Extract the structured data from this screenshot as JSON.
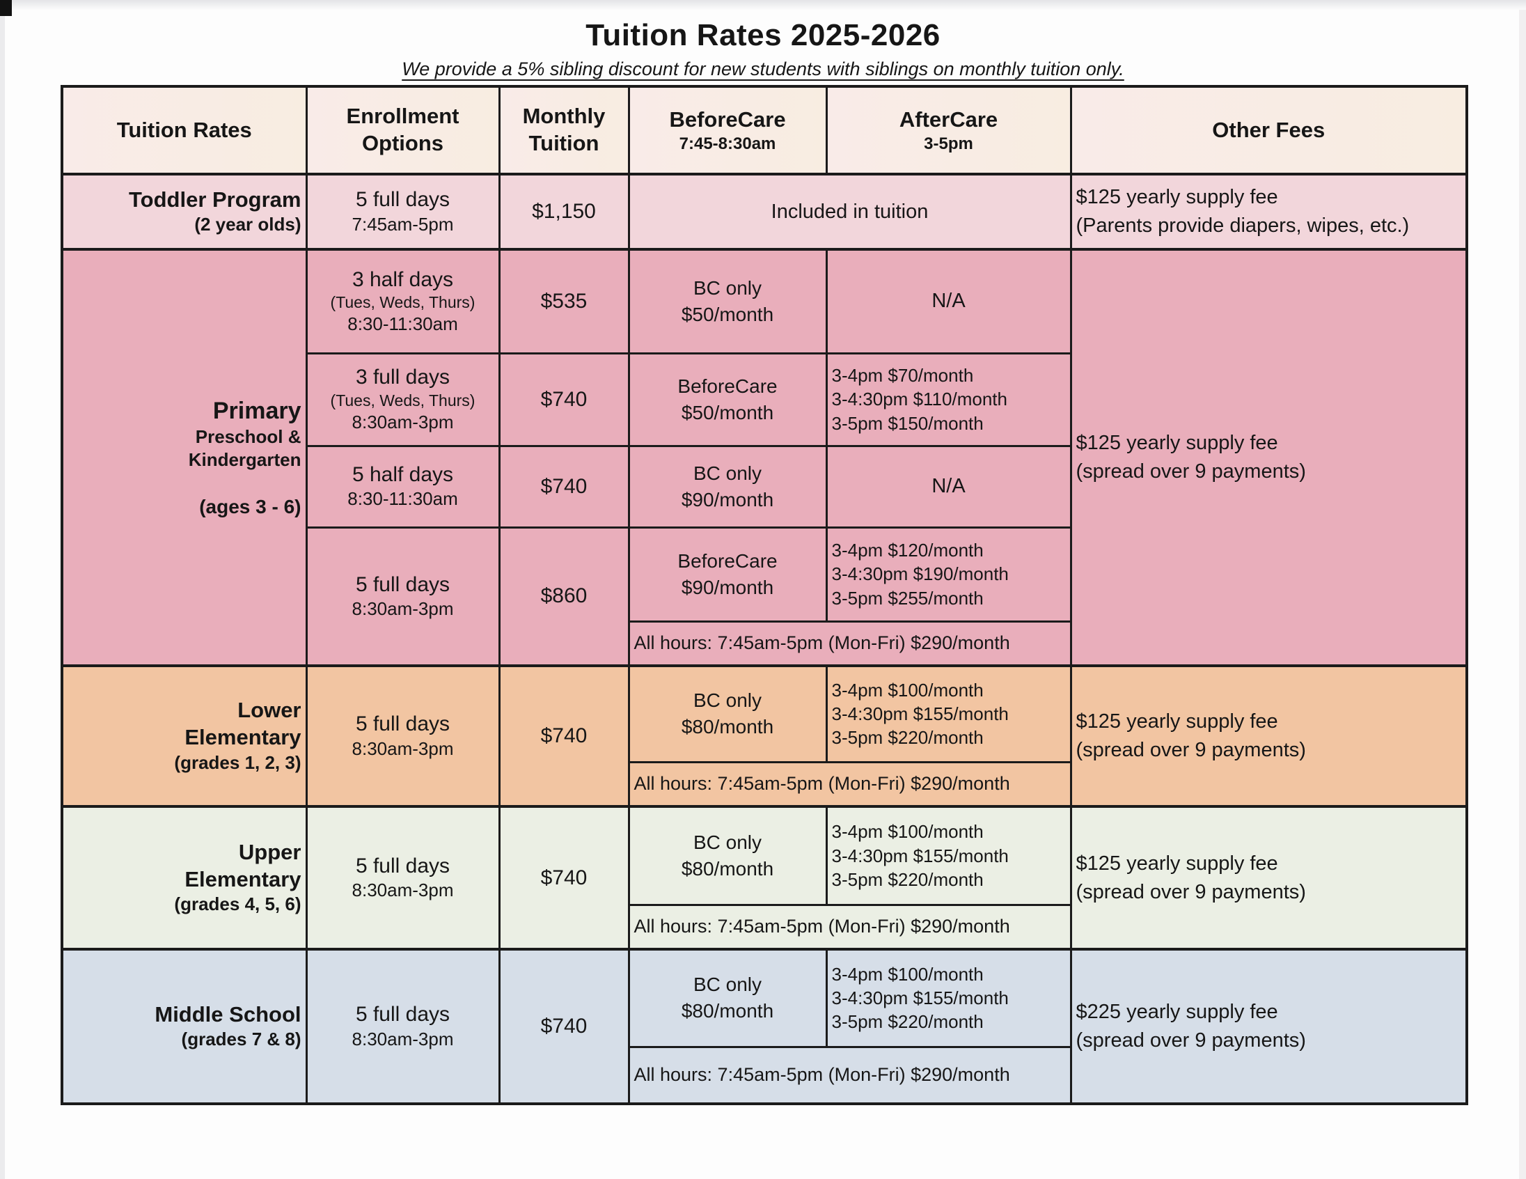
{
  "page": {
    "title": "Tuition Rates 2025-2026",
    "subtitle": "We provide a 5% sibling discount for new students with siblings on monthly tuition only."
  },
  "headers": {
    "tuition_rates": "Tuition Rates",
    "enrollment_options": "Enrollment\nOptions",
    "monthly_tuition": "Monthly\nTuition",
    "beforecare": "BeforeCare",
    "beforecare_hours": "7:45-8:30am",
    "aftercare": "AfterCare",
    "aftercare_hours": "3-5pm",
    "other_fees": "Other Fees"
  },
  "toddler": {
    "label": "Toddler Program",
    "sublabel": "(2 year olds)",
    "enrollment": "5 full days",
    "enrollment_time": "7:45am-5pm",
    "tuition": "$1,150",
    "care": "Included in tuition",
    "other_fee": "$125 yearly supply fee\n(Parents provide diapers, wipes, etc.)"
  },
  "primary": {
    "label": "Primary",
    "sublabel": "Preschool &\nKindergarten",
    "ages": "(ages 3 - 6)",
    "rows": [
      {
        "enrollment": "3 half days",
        "days": "(Tues, Weds, Thurs)",
        "time": "8:30-11:30am",
        "tuition": "$535",
        "beforecare": "BC only\n$50/month",
        "aftercare": "N/A"
      },
      {
        "enrollment": "3 full days",
        "days": "(Tues, Weds, Thurs)",
        "time": "8:30am-3pm",
        "tuition": "$740",
        "beforecare": "BeforeCare\n$50/month",
        "aftercare": "3-4pm $70/month\n3-4:30pm $110/month\n3-5pm $150/month"
      },
      {
        "enrollment": "5 half days",
        "time": "8:30-11:30am",
        "tuition": "$740",
        "beforecare": "BC only\n$90/month",
        "aftercare": "N/A"
      },
      {
        "enrollment": "5 full days",
        "time": "8:30am-3pm",
        "tuition": "$860",
        "beforecare": "BeforeCare\n$90/month",
        "aftercare": "3-4pm $120/month\n3-4:30pm $190/month\n3-5pm $255/month"
      }
    ],
    "all_hours": "All hours: 7:45am-5pm (Mon-Fri) $290/month",
    "other_fee": "$125 yearly supply fee\n(spread over 9 payments)"
  },
  "lower_elementary": {
    "label": "Lower\nElementary",
    "sublabel": "(grades 1, 2, 3)",
    "enrollment": "5 full days",
    "enrollment_time": "8:30am-3pm",
    "tuition": "$740",
    "beforecare": "BC only\n$80/month",
    "aftercare": "3-4pm $100/month\n3-4:30pm $155/month\n3-5pm $220/month",
    "all_hours": "All hours: 7:45am-5pm (Mon-Fri) $290/month",
    "other_fee": "$125 yearly supply fee\n(spread over 9 payments)"
  },
  "upper_elementary": {
    "label": "Upper\nElementary",
    "sublabel": "(grades 4, 5, 6)",
    "enrollment": "5 full days",
    "enrollment_time": "8:30am-3pm",
    "tuition": "$740",
    "beforecare": "BC only\n$80/month",
    "aftercare": "3-4pm $100/month\n3-4:30pm $155/month\n3-5pm $220/month",
    "all_hours": "All hours: 7:45am-5pm (Mon-Fri) $290/month",
    "other_fee": "$125 yearly supply fee\n(spread over 9 payments)"
  },
  "middle_school": {
    "label": "Middle School",
    "sublabel": "(grades 7 & 8)",
    "enrollment": "5 full days",
    "enrollment_time": "8:30am-3pm",
    "tuition": "$740",
    "beforecare": "BC only\n$80/month",
    "aftercare": "3-4pm $100/month\n3-4:30pm $155/month\n3-5pm $220/month",
    "all_hours": "All hours: 7:45am-5pm (Mon-Fri) $290/month",
    "other_fee": "$225 yearly supply fee\n(spread over 9 payments)"
  },
  "colors": {
    "header_bg": "#f8ece6",
    "toddler_bg": "#f2d6db",
    "primary_bg": "#e9aebb",
    "lower_elementary_bg": "#f2c5a2",
    "upper_elementary_bg": "#ebefe4",
    "middle_school_bg": "#d6dee8",
    "border": "#1b1b1b"
  }
}
